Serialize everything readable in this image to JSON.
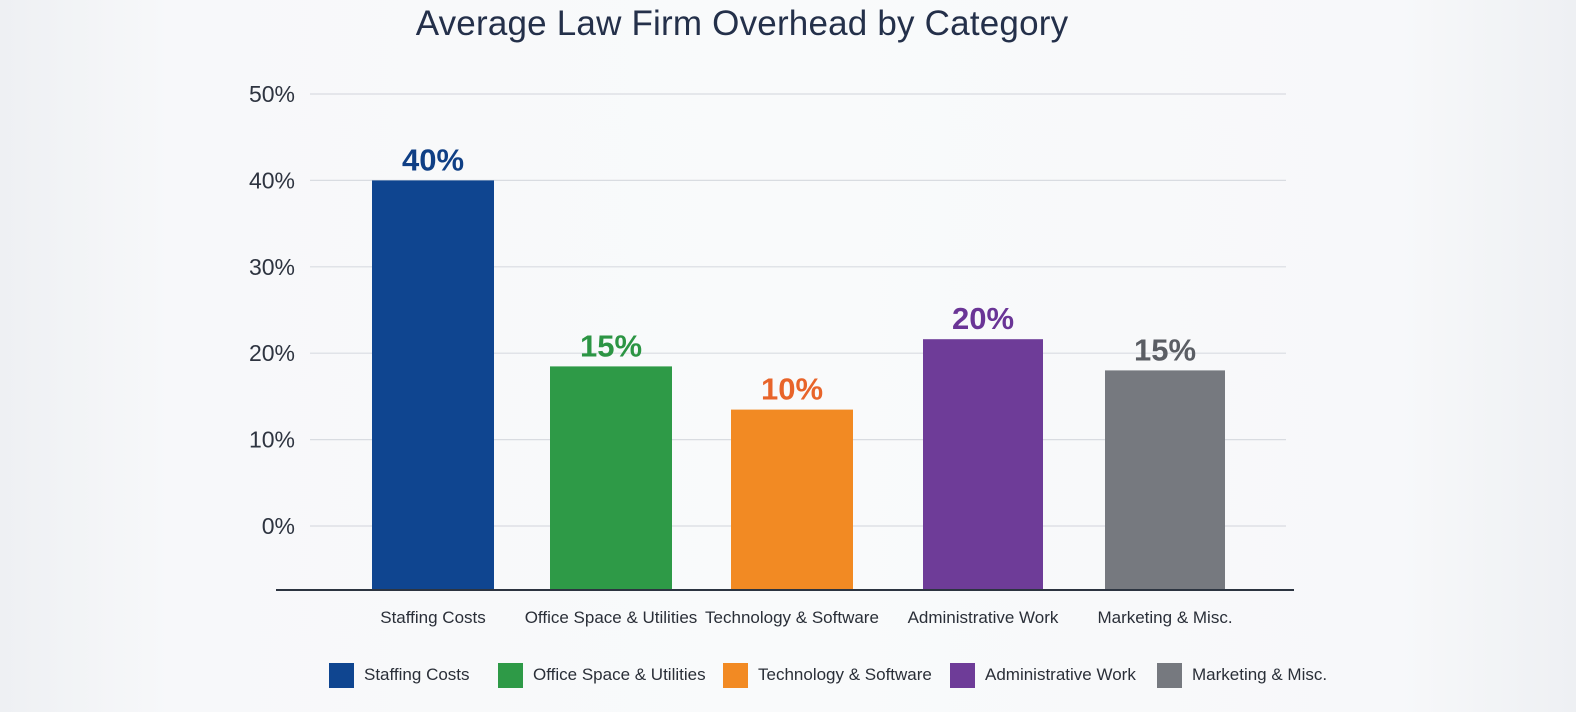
{
  "chart_data": {
    "type": "bar",
    "title": "Average Law Firm Overhead by Category",
    "xlabel": "",
    "ylabel": "",
    "ylim": [
      0,
      50
    ],
    "yticks": [
      "0%",
      "10%",
      "20%",
      "30%",
      "40%",
      "50%"
    ],
    "grid": true,
    "legend_position": "bottom",
    "categories": [
      "Staffing Costs",
      "Office Space & Utilities",
      "Technology & Software",
      "Administrative Work",
      "Marketing & Misc."
    ],
    "values": [
      40,
      15,
      10,
      20,
      15
    ],
    "data_labels": [
      "40%",
      "15%",
      "10%",
      "20%",
      "15%"
    ],
    "colors": [
      "#0f4590",
      "#2e9a47",
      "#f28a23",
      "#6e3c98",
      "#76797f"
    ],
    "label_colors": [
      "#0f3f85",
      "#2c9544",
      "#e8642a",
      "#6a3596",
      "#5b5e64"
    ],
    "legend": [
      "Staffing Costs",
      "Office Space & Utilities",
      "Technology & Software",
      "Administrative Work",
      "Marketing & Misc."
    ]
  }
}
